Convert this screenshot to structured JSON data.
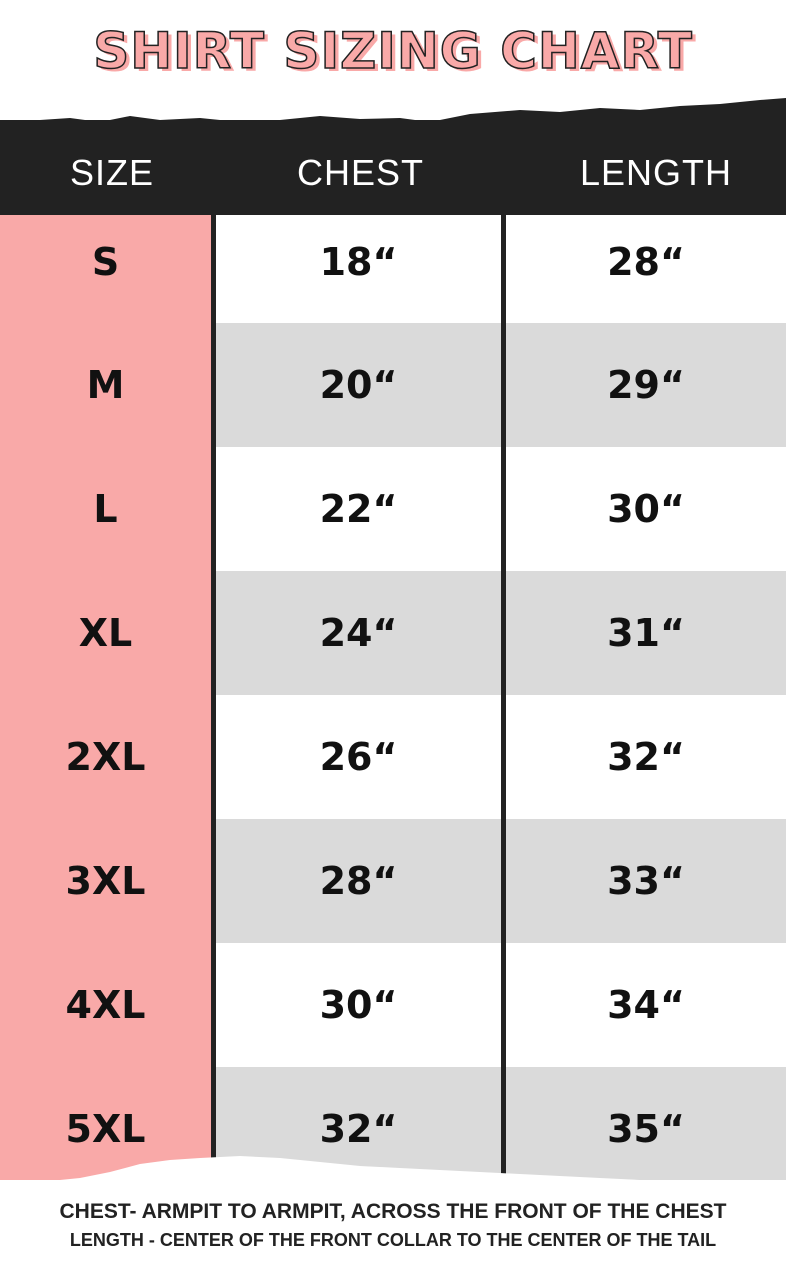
{
  "title": "SHIRT SIZING CHART",
  "colors": {
    "accent_pink": "#f9a9a8",
    "header_dark": "#222222",
    "row_gray": "#dadada"
  },
  "chart_data": {
    "type": "table",
    "columns": [
      "SIZE",
      "CHEST",
      "LENGTH"
    ],
    "rows": [
      [
        "S",
        "18“",
        "28“"
      ],
      [
        "M",
        "20“",
        "29“"
      ],
      [
        "L",
        "22“",
        "30“"
      ],
      [
        "XL",
        "24“",
        "31“"
      ],
      [
        "2XL",
        "26“",
        "32“"
      ],
      [
        "3XL",
        "28“",
        "33“"
      ],
      [
        "4XL",
        "30“",
        "34“"
      ],
      [
        "5XL",
        "32“",
        "35“"
      ]
    ]
  },
  "notes": {
    "chest": "CHEST- ARMPIT TO ARMPIT, ACROSS THE FRONT OF THE CHEST",
    "length": "LENGTH - CENTER OF THE FRONT COLLAR TO THE CENTER OF THE TAIL"
  }
}
